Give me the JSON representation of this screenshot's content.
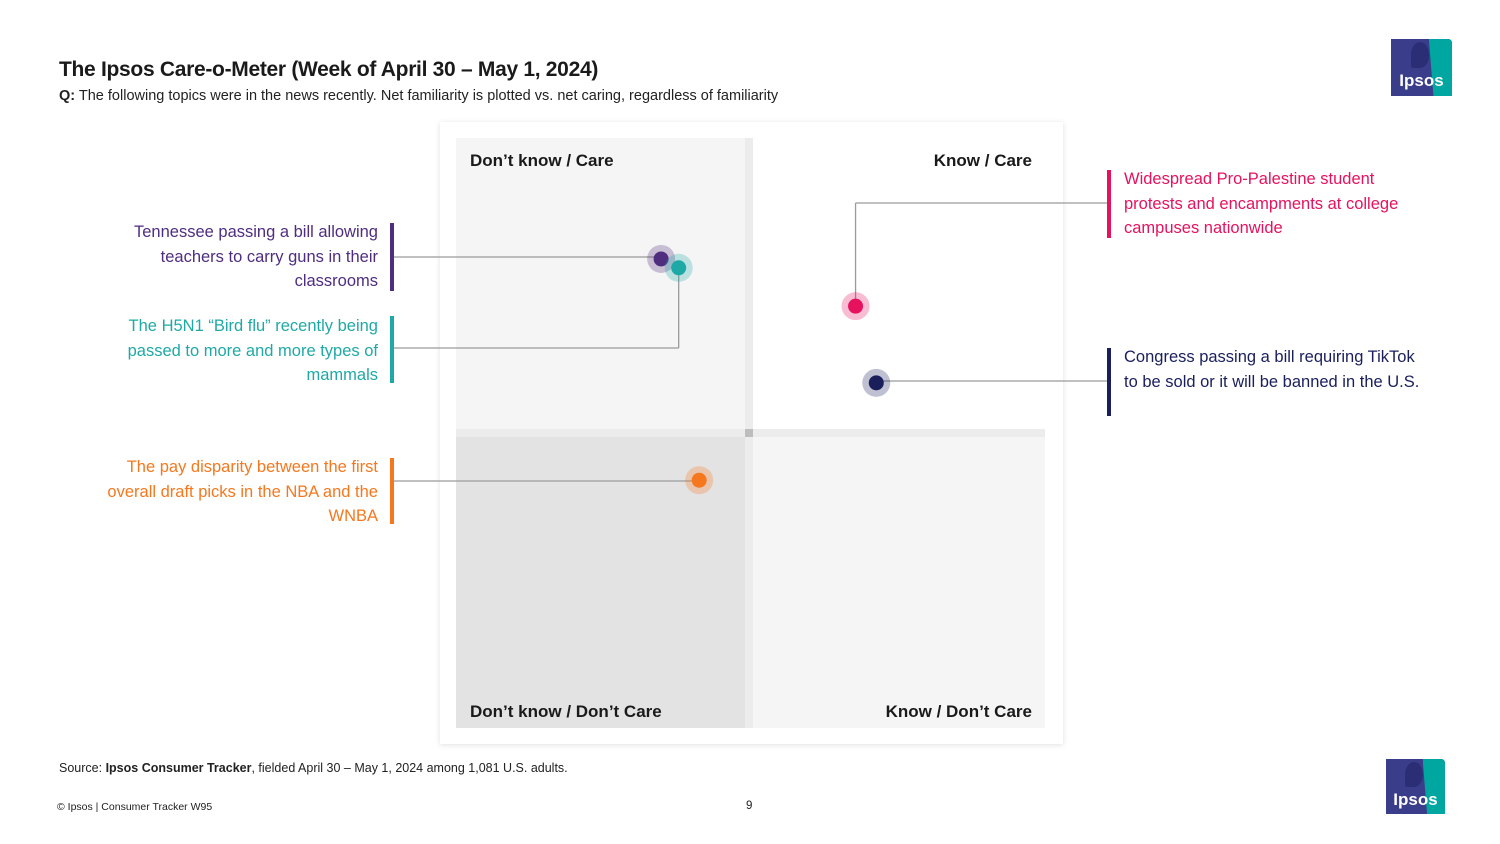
{
  "header": {
    "title": "The Ipsos Care-o-Meter (Week of April 30 – May 1, 2024)",
    "question_prefix": "Q:",
    "question_text": "The following topics were in the news recently. Net familiarity is plotted vs. net caring, regardless of familiarity"
  },
  "logo": {
    "text": "Ipsos"
  },
  "chart_data": {
    "type": "scatter",
    "quadrants": {
      "top_left": "Don’t know / Care",
      "top_right": "Know / Care",
      "bottom_left": "Don’t know / Don’t Care",
      "bottom_right": "Know / Don’t Care"
    },
    "points": [
      {
        "label": "Tennessee passing a bill allowing teachers to carry guns in their classrooms",
        "color": "#4f2d7f",
        "x": -0.3,
        "y": 0.59,
        "label_side": "left"
      },
      {
        "label": "The H5N1 “Bird flu” recently being passed to more and more types of mammals",
        "color": "#1fa9a6",
        "x": -0.24,
        "y": 0.56,
        "label_side": "left"
      },
      {
        "label": "Widespread Pro-Palestine student protests and encampments at college campuses nationwide",
        "color": "#e6125d",
        "x": 0.36,
        "y": 0.43,
        "label_side": "right"
      },
      {
        "label": "Congress passing a bill requiring TikTok to be sold or it will be banned in the U.S.",
        "color": "#1a1f5c",
        "x": 0.43,
        "y": 0.17,
        "label_side": "right"
      },
      {
        "label": "The pay disparity between the first overall draft picks in the NBA and the WNBA",
        "color": "#f5781e",
        "x": -0.17,
        "y": -0.16,
        "label_side": "left"
      }
    ],
    "xlim": [
      -1,
      1
    ],
    "ylim": [
      -1,
      1
    ],
    "grid": false,
    "legend": "none"
  },
  "footer": {
    "source_prefix": "Source:",
    "source_bold": "Ipsos Consumer Tracker",
    "source_rest": ", fielded April 30 – May 1, 2024 among 1,081 U.S. adults.",
    "copyright": "© Ipsos | Consumer Tracker W95",
    "page_number": "9"
  }
}
